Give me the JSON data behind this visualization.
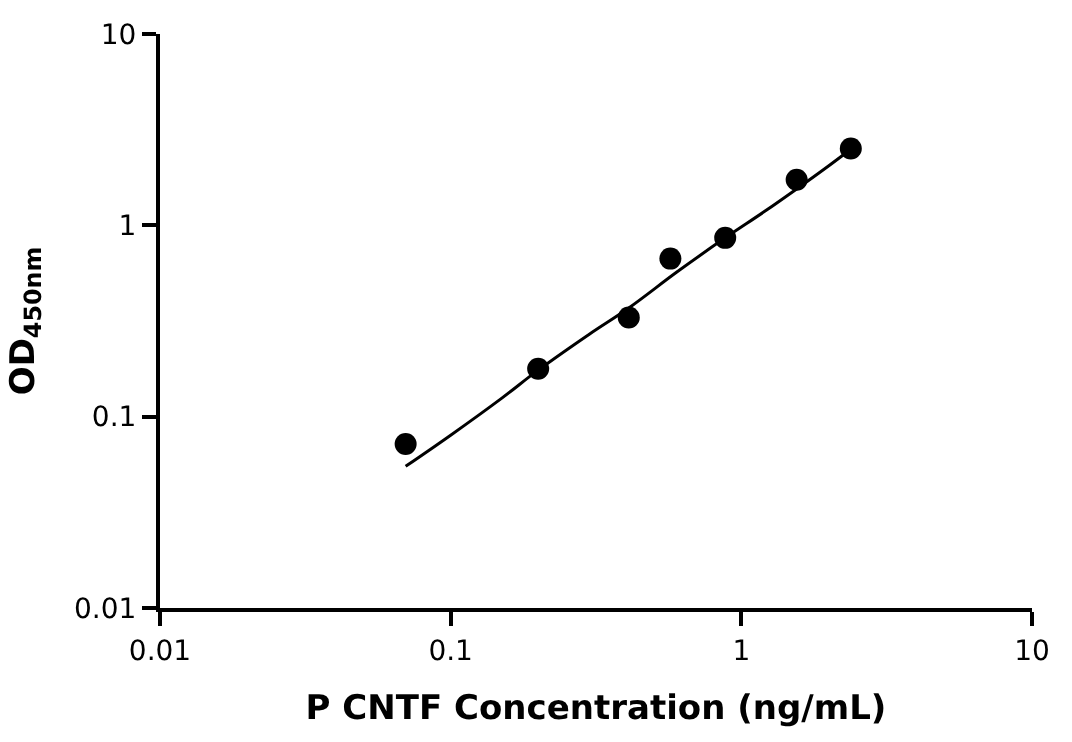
{
  "chart_data": {
    "type": "scatter",
    "xlabel": "P CNTF Concentration (ng/mL)",
    "ylabel": "OD$_{450nm}$",
    "log": "xy",
    "xlim": [
      0.01,
      10
    ],
    "ylim": [
      0.01,
      10
    ],
    "xticks": [
      0.01,
      0.1,
      1,
      10
    ],
    "yticks": [
      0.01,
      0.1,
      1,
      10
    ],
    "legend": false,
    "marker": "circle",
    "series": [
      {
        "color": "#000000",
        "x": [
          0.07,
          0.2,
          0.41,
          0.57,
          0.88,
          1.55,
          2.38
        ],
        "values": [
          0.072,
          0.178,
          0.33,
          0.67,
          0.86,
          1.73,
          2.52
        ]
      },
      {
        "type": "line",
        "color": "#000000",
        "marker": "none",
        "line_style": "solid",
        "x": [
          0.07,
          0.1,
          0.15,
          0.2,
          0.3,
          0.41,
          0.6,
          0.88,
          1.2,
          1.55,
          2.0,
          2.38
        ],
        "values": [
          0.055,
          0.08,
          0.125,
          0.175,
          0.27,
          0.37,
          0.57,
          0.86,
          1.18,
          1.55,
          2.05,
          2.5
        ]
      }
    ]
  }
}
